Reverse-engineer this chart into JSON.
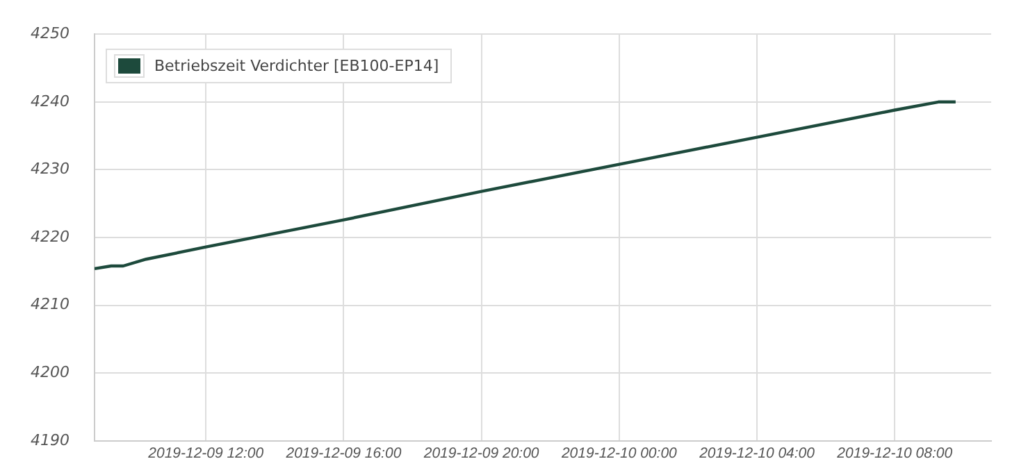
{
  "chart_data": {
    "type": "line",
    "x": [
      "2019-12-09T08:46",
      "2019-12-09T09:15",
      "2019-12-09T09:36",
      "2019-12-09T10:16",
      "2019-12-09T12:00",
      "2019-12-09T16:00",
      "2019-12-09T20:00",
      "2019-12-10T00:00",
      "2019-12-10T04:00",
      "2019-12-10T08:00",
      "2019-12-10T09:16",
      "2019-12-10T09:46"
    ],
    "series": [
      {
        "name": "Betriebszeit Verdichter [EB100-EP14]",
        "color": "#1d4a3c",
        "values": [
          4215.4,
          4215.8,
          4215.8,
          4216.8,
          4218.6,
          4222.6,
          4226.8,
          4230.8,
          4234.8,
          4238.8,
          4240,
          4240
        ]
      }
    ],
    "xlim": [
      "2019-12-09T08:46",
      "2019-12-10T10:48"
    ],
    "xticks": [
      {
        "value": "2019-12-09T12:00",
        "label": "2019-12-09 12:00"
      },
      {
        "value": "2019-12-09T16:00",
        "label": "2019-12-09 16:00"
      },
      {
        "value": "2019-12-09T20:00",
        "label": "2019-12-09 20:00"
      },
      {
        "value": "2019-12-10T00:00",
        "label": "2019-12-10 00:00"
      },
      {
        "value": "2019-12-10T04:00",
        "label": "2019-12-10 04:00"
      },
      {
        "value": "2019-12-10T08:00",
        "label": "2019-12-10 08:00"
      }
    ],
    "ylim": [
      4190,
      4250
    ],
    "yticks": [
      4190,
      4200,
      4210,
      4220,
      4230,
      4240,
      4250
    ],
    "grid": true,
    "legend": "top left",
    "marker": "none",
    "line_style": "solid"
  }
}
